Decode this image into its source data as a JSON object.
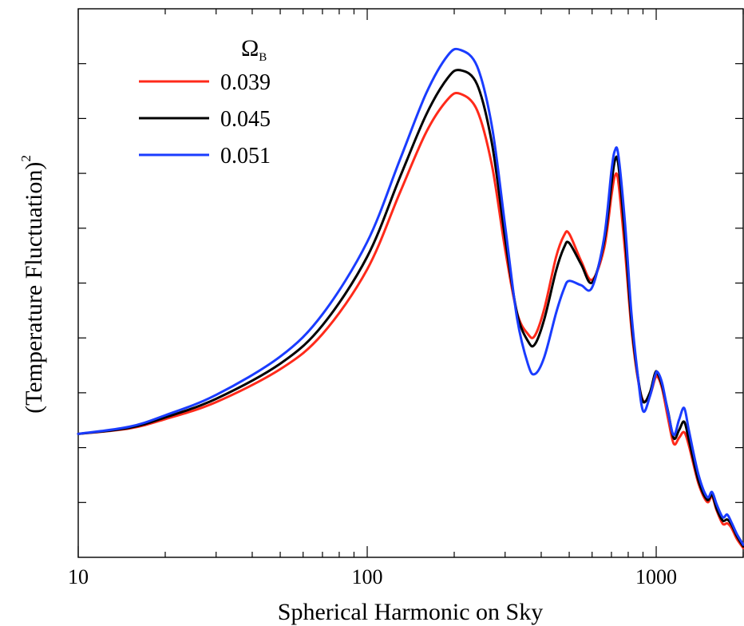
{
  "chart_data": {
    "type": "line",
    "title": "",
    "xlabel": "Spherical Harmonic on Sky",
    "ylabel": "(Temperature Fluctuation)",
    "ylabel_superscript": "2",
    "xscale": "log",
    "xlim": [
      10,
      2000
    ],
    "ylim": [
      0,
      100
    ],
    "x_tick_labels": [
      "10",
      "100",
      "1000"
    ],
    "y_tick_labels_shown": false,
    "grid": false,
    "legend": {
      "title_symbol": "Ω",
      "title_subscript": "B",
      "placement": "top-left"
    },
    "series": [
      {
        "name": "0.039",
        "color": "#ff2a1a",
        "points": [
          [
            10,
            22.5
          ],
          [
            15,
            23.5
          ],
          [
            20,
            25.2
          ],
          [
            30,
            28.3
          ],
          [
            50,
            34.3
          ],
          [
            70,
            40.7
          ],
          [
            100,
            52.5
          ],
          [
            130,
            66.6
          ],
          [
            160,
            77.5
          ],
          [
            190,
            83.5
          ],
          [
            210,
            84.5
          ],
          [
            240,
            81.5
          ],
          [
            270,
            71.5
          ],
          [
            300,
            56.2
          ],
          [
            330,
            44.6
          ],
          [
            360,
            40.7
          ],
          [
            380,
            40.4
          ],
          [
            410,
            45.3
          ],
          [
            450,
            54.7
          ],
          [
            480,
            58.7
          ],
          [
            500,
            59
          ],
          [
            550,
            54
          ],
          [
            600,
            50.6
          ],
          [
            660,
            56.3
          ],
          [
            700,
            65.9
          ],
          [
            720,
            69.6
          ],
          [
            740,
            68.3
          ],
          [
            780,
            55.8
          ],
          [
            820,
            42
          ],
          [
            860,
            33.2
          ],
          [
            900,
            28.6
          ],
          [
            950,
            29.5
          ],
          [
            990,
            32.5
          ],
          [
            1010,
            33
          ],
          [
            1050,
            30.6
          ],
          [
            1100,
            25.2
          ],
          [
            1150,
            20.7
          ],
          [
            1200,
            21.8
          ],
          [
            1250,
            22.8
          ],
          [
            1300,
            20.2
          ],
          [
            1400,
            13.5
          ],
          [
            1500,
            10.1
          ],
          [
            1560,
            11.1
          ],
          [
            1620,
            8.5
          ],
          [
            1700,
            6.1
          ],
          [
            1760,
            6.2
          ],
          [
            1820,
            5.4
          ],
          [
            1900,
            3.4
          ],
          [
            2000,
            1.7
          ]
        ]
      },
      {
        "name": "0.045",
        "color": "#000000",
        "points": [
          [
            10,
            22.5
          ],
          [
            15,
            23.6
          ],
          [
            20,
            25.5
          ],
          [
            30,
            28.9
          ],
          [
            50,
            35.3
          ],
          [
            70,
            42.3
          ],
          [
            100,
            54.8
          ],
          [
            130,
            69.4
          ],
          [
            160,
            80.7
          ],
          [
            190,
            87.4
          ],
          [
            210,
            88.8
          ],
          [
            240,
            86.2
          ],
          [
            270,
            75.5
          ],
          [
            300,
            58.2
          ],
          [
            330,
            44.5
          ],
          [
            360,
            39.4
          ],
          [
            380,
            38.8
          ],
          [
            410,
            43.4
          ],
          [
            450,
            52.2
          ],
          [
            480,
            56.5
          ],
          [
            500,
            57.3
          ],
          [
            550,
            53.4
          ],
          [
            600,
            50.1
          ],
          [
            660,
            57.5
          ],
          [
            700,
            68
          ],
          [
            720,
            72.4
          ],
          [
            740,
            71.5
          ],
          [
            780,
            58.3
          ],
          [
            820,
            43.2
          ],
          [
            860,
            33.7
          ],
          [
            900,
            28.4
          ],
          [
            950,
            30
          ],
          [
            990,
            33.5
          ],
          [
            1010,
            33.6
          ],
          [
            1050,
            31.1
          ],
          [
            1100,
            26.5
          ],
          [
            1150,
            21.7
          ],
          [
            1200,
            23.2
          ],
          [
            1250,
            24.7
          ],
          [
            1300,
            21.2
          ],
          [
            1400,
            14
          ],
          [
            1500,
            10.5
          ],
          [
            1560,
            11.4
          ],
          [
            1620,
            8.8
          ],
          [
            1700,
            6.7
          ],
          [
            1760,
            6.9
          ],
          [
            1820,
            6
          ],
          [
            1900,
            3.9
          ],
          [
            2000,
            2
          ]
        ]
      },
      {
        "name": "0.051",
        "color": "#1a3cff",
        "points": [
          [
            10,
            22.5
          ],
          [
            15,
            23.8
          ],
          [
            20,
            25.9
          ],
          [
            30,
            29.6
          ],
          [
            50,
            36.6
          ],
          [
            70,
            44.3
          ],
          [
            100,
            57.5
          ],
          [
            130,
            72.6
          ],
          [
            160,
            84.6
          ],
          [
            190,
            91.5
          ],
          [
            210,
            92.5
          ],
          [
            240,
            89.5
          ],
          [
            270,
            78.6
          ],
          [
            300,
            60.5
          ],
          [
            330,
            43.6
          ],
          [
            360,
            35.2
          ],
          [
            380,
            33.4
          ],
          [
            410,
            36.5
          ],
          [
            450,
            44.5
          ],
          [
            480,
            49
          ],
          [
            500,
            50.4
          ],
          [
            550,
            49.6
          ],
          [
            600,
            49.2
          ],
          [
            660,
            58.2
          ],
          [
            700,
            70.4
          ],
          [
            720,
            74.2
          ],
          [
            740,
            73.2
          ],
          [
            780,
            60.8
          ],
          [
            820,
            44.8
          ],
          [
            860,
            34
          ],
          [
            900,
            26.7
          ],
          [
            950,
            29.3
          ],
          [
            990,
            33
          ],
          [
            1010,
            33.8
          ],
          [
            1050,
            31.6
          ],
          [
            1100,
            26.3
          ],
          [
            1150,
            22.3
          ],
          [
            1200,
            25.1
          ],
          [
            1250,
            27.2
          ],
          [
            1300,
            22.9
          ],
          [
            1400,
            15.1
          ],
          [
            1500,
            11
          ],
          [
            1560,
            11.9
          ],
          [
            1620,
            9.6
          ],
          [
            1700,
            7.3
          ],
          [
            1760,
            7.8
          ],
          [
            1820,
            6.4
          ],
          [
            1900,
            4.3
          ],
          [
            2000,
            2.3
          ]
        ]
      }
    ]
  }
}
